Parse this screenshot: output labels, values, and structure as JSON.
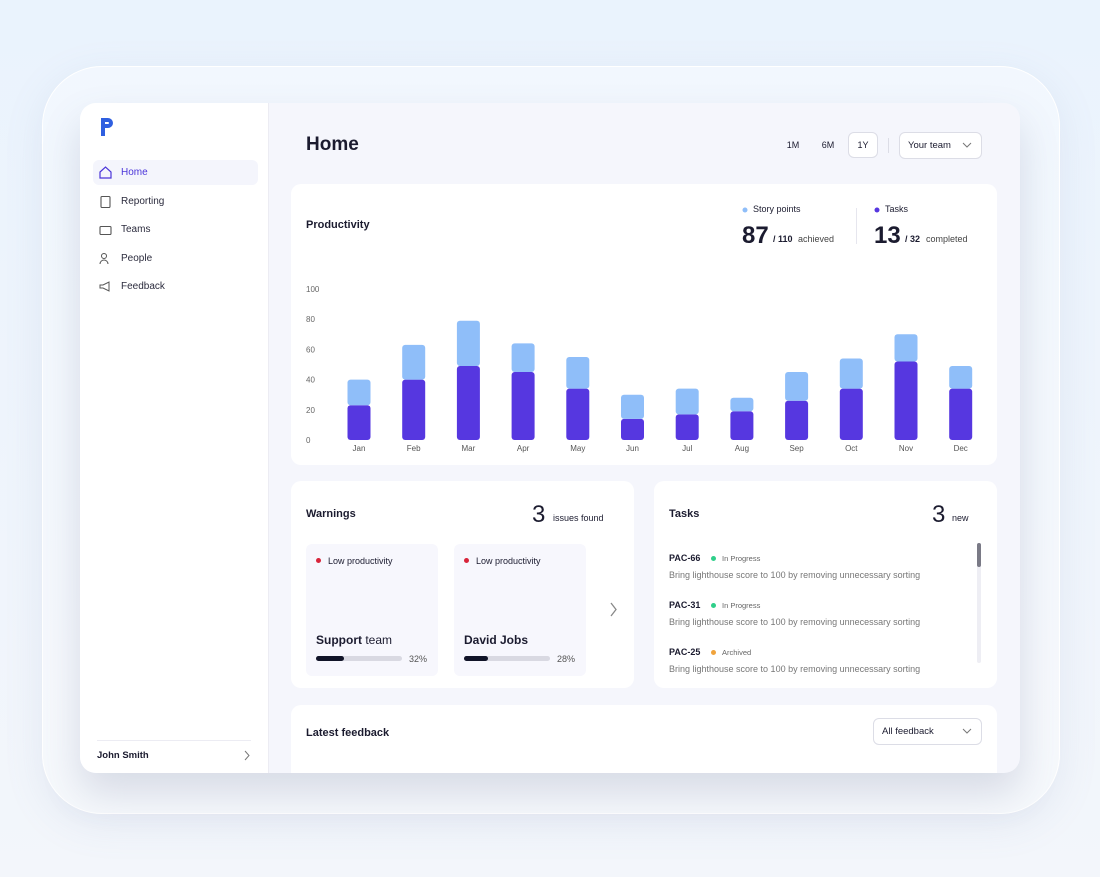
{
  "sidebar": {
    "nav": [
      "Home",
      "Reporting",
      "Teams",
      "People",
      "Feedback"
    ],
    "user": "John Smith"
  },
  "header": {
    "title": "Home",
    "ranges": [
      "1M",
      "6M",
      "1Y"
    ],
    "team": "Your team"
  },
  "productivity": {
    "title": "Productivity",
    "stats": [
      {
        "value": 87,
        "total": "/ 110",
        "label": "achieved"
      },
      {
        "value": 13,
        "total": "/ 32",
        "label": "completed"
      }
    ]
  },
  "chart_data": {
    "type": "bar",
    "stacked": true,
    "categories": [
      "Jan",
      "Feb",
      "Mar",
      "Apr",
      "May",
      "Jun",
      "Jul",
      "Aug",
      "Sep",
      "Oct",
      "Nov",
      "Dec"
    ],
    "series": [
      {
        "name": "Tasks",
        "color": "#5637e0",
        "values": [
          23,
          40,
          49,
          45,
          34,
          14,
          17,
          19,
          26,
          34,
          52,
          34
        ]
      },
      {
        "name": "Story points",
        "color": "#8fbef9",
        "values": [
          17,
          23,
          30,
          19,
          21,
          16,
          17,
          9,
          19,
          20,
          18,
          15
        ]
      }
    ],
    "ylim": [
      0,
      100
    ],
    "yticks": [
      0,
      20,
      40,
      60,
      80,
      100
    ]
  },
  "warnings": {
    "title": "Warnings",
    "count": 3,
    "count_label": "issues found",
    "cards": [
      {
        "tag": "Low productivity",
        "name": "Support",
        "name_suffix": "team",
        "value": 32,
        "value_label": "32%"
      },
      {
        "tag": "Low productivity",
        "name": "David Jobs",
        "value": 28,
        "value_label": "28%"
      }
    ]
  },
  "tasks": {
    "title": "Tasks",
    "count": 3,
    "count_label": "new",
    "items": [
      {
        "id": "PAC-66",
        "status": "In Progress",
        "status_color": "#2fcf8a",
        "text": "Bring lighthouse score to 100 by removing unnecessary sorting"
      },
      {
        "id": "PAC-31",
        "status": "In Progress",
        "status_color": "#2fcf8a",
        "text": "Bring lighthouse score to 100 by removing unnecessary sorting"
      },
      {
        "id": "PAC-25",
        "status": "Archived",
        "status_color": "#f0a33c",
        "text": "Bring lighthouse score to 100 by removing unnecessary sorting"
      }
    ]
  },
  "feedback": {
    "title": "Latest feedback",
    "filter": "All feedback"
  }
}
